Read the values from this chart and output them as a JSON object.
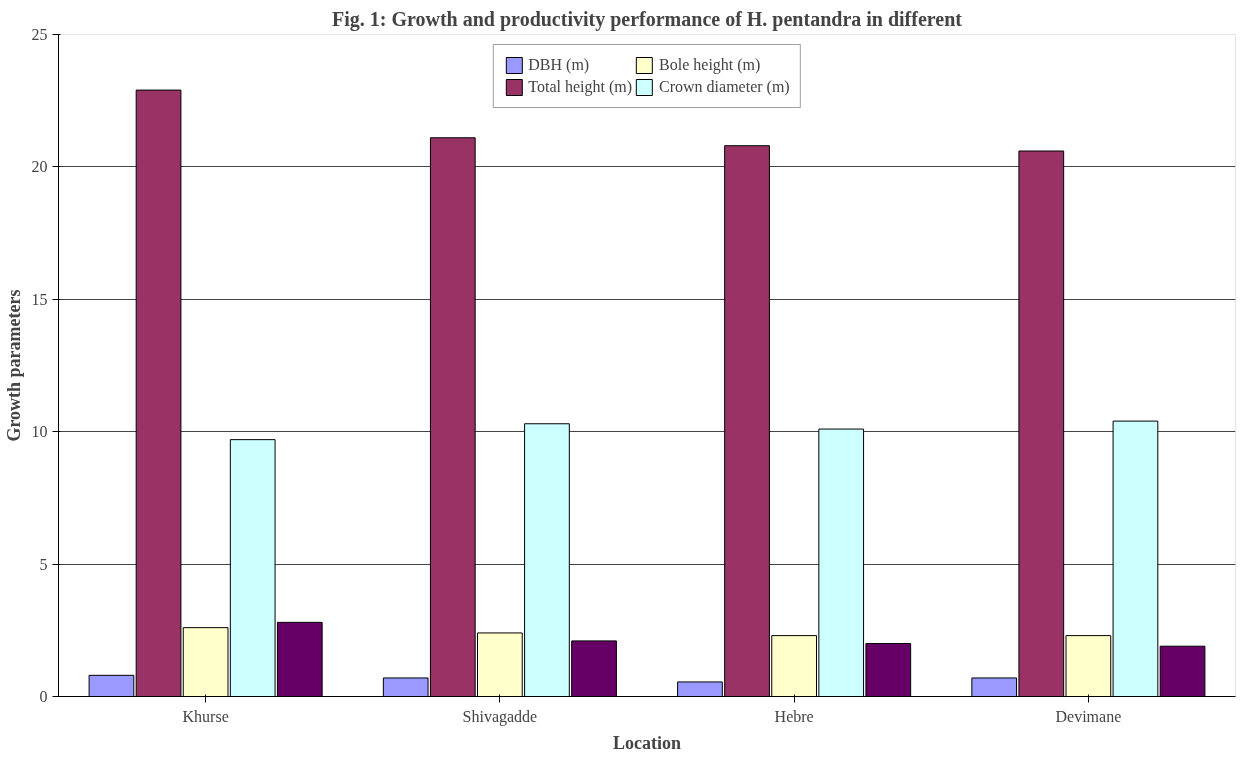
{
  "chart_data": {
    "type": "bar",
    "title": "Fig. 1: Growth and productivity performance of H. pentandra in different",
    "xlabel": "Location",
    "ylabel": "Growth parameters",
    "categories": [
      "Khurse",
      "Shivagadde",
      "Hebre",
      "Devimane"
    ],
    "series": [
      {
        "name": "DBH (m)",
        "color": "#9999ff",
        "values": [
          0.8,
          0.7,
          0.55,
          0.7
        ]
      },
      {
        "name": "Total height (m)",
        "color": "#993366",
        "values": [
          22.9,
          21.1,
          20.8,
          20.6
        ]
      },
      {
        "name": "Bole height (m)",
        "color": "#ffffcc",
        "values": [
          2.6,
          2.4,
          2.3,
          2.3
        ]
      },
      {
        "name": "Crown diameter (m)",
        "color": "#ccffff",
        "values": [
          9.7,
          10.3,
          10.1,
          10.4
        ]
      },
      {
        "color": "#660066",
        "values": [
          2.8,
          2.1,
          2.0,
          1.9
        ]
      }
    ],
    "ylim": [
      0,
      25
    ],
    "yticks": [
      0,
      5,
      10,
      15,
      20,
      25
    ],
    "grid": "y",
    "legend": "top"
  }
}
